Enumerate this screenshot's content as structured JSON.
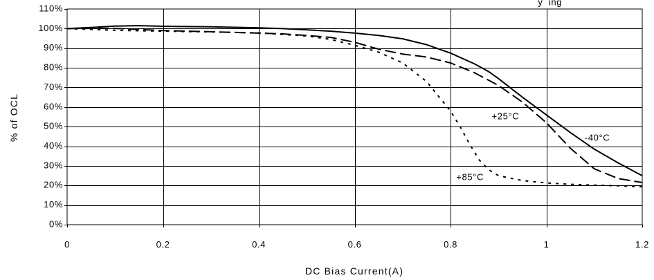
{
  "chart_data": {
    "type": "line",
    "title_fragment": "y  ing",
    "xlabel": "DC Bias Current(A)",
    "ylabel": "% of OCL",
    "xlim": [
      0,
      1.2
    ],
    "ylim": [
      0,
      110
    ],
    "x_ticks": [
      0,
      0.2,
      0.4,
      0.6,
      0.8,
      1,
      1.2
    ],
    "x_tick_labels": [
      "0",
      "0.2",
      "0.4",
      "0.6",
      "0.8",
      "1",
      "1.2"
    ],
    "y_ticks": [
      0,
      10,
      20,
      30,
      40,
      50,
      60,
      70,
      80,
      90,
      100,
      110
    ],
    "y_tick_labels": [
      "0%",
      "10%",
      "20%",
      "30%",
      "40%",
      "50%",
      "60%",
      "70%",
      "80%",
      "90%",
      "100%",
      "110%"
    ],
    "grid": true,
    "series": [
      {
        "name": "-40°C",
        "style": "solid",
        "label_at": [
          1.08,
          44
        ],
        "points": [
          [
            0,
            100
          ],
          [
            0.05,
            100.6
          ],
          [
            0.1,
            101.3
          ],
          [
            0.15,
            101.5
          ],
          [
            0.2,
            101.2
          ],
          [
            0.3,
            100.9
          ],
          [
            0.4,
            100.4
          ],
          [
            0.45,
            100
          ],
          [
            0.5,
            99.4
          ],
          [
            0.55,
            98.7
          ],
          [
            0.6,
            97.7
          ],
          [
            0.65,
            96.5
          ],
          [
            0.7,
            94.8
          ],
          [
            0.75,
            91.8
          ],
          [
            0.8,
            87.5
          ],
          [
            0.85,
            82
          ],
          [
            0.88,
            78
          ],
          [
            0.9,
            74.5
          ],
          [
            0.95,
            65
          ],
          [
            1.0,
            56
          ],
          [
            1.05,
            47
          ],
          [
            1.1,
            38.5
          ],
          [
            1.15,
            31.5
          ],
          [
            1.2,
            25
          ]
        ]
      },
      {
        "name": "+25°C",
        "style": "dashed",
        "label_at": [
          0.886,
          55
        ],
        "points": [
          [
            0,
            100
          ],
          [
            0.05,
            100.1
          ],
          [
            0.1,
            100.1
          ],
          [
            0.2,
            99
          ],
          [
            0.3,
            98.4
          ],
          [
            0.4,
            97.7
          ],
          [
            0.45,
            97.3
          ],
          [
            0.5,
            96.5
          ],
          [
            0.55,
            95.5
          ],
          [
            0.6,
            93
          ],
          [
            0.65,
            89.5
          ],
          [
            0.7,
            87
          ],
          [
            0.75,
            85.5
          ],
          [
            0.8,
            82.5
          ],
          [
            0.85,
            77.5
          ],
          [
            0.9,
            71
          ],
          [
            0.95,
            62.5
          ],
          [
            1.0,
            52
          ],
          [
            1.05,
            39
          ],
          [
            1.1,
            28.5
          ],
          [
            1.15,
            23.5
          ],
          [
            1.2,
            21.5
          ]
        ]
      },
      {
        "name": "+85°C",
        "style": "dotted",
        "label_at": [
          0.812,
          24
        ],
        "points": [
          [
            0,
            100
          ],
          [
            0.05,
            99.6
          ],
          [
            0.1,
            99.1
          ],
          [
            0.2,
            98.7
          ],
          [
            0.3,
            98.3
          ],
          [
            0.4,
            97.8
          ],
          [
            0.5,
            96.2
          ],
          [
            0.55,
            94.5
          ],
          [
            0.6,
            91.5
          ],
          [
            0.65,
            88
          ],
          [
            0.7,
            82.5
          ],
          [
            0.75,
            73
          ],
          [
            0.78,
            64
          ],
          [
            0.8,
            58
          ],
          [
            0.82,
            50
          ],
          [
            0.84,
            41
          ],
          [
            0.86,
            33
          ],
          [
            0.88,
            28
          ],
          [
            0.9,
            25
          ],
          [
            0.95,
            22.5
          ],
          [
            1.0,
            21.3
          ],
          [
            1.05,
            20.6
          ],
          [
            1.1,
            20.2
          ],
          [
            1.15,
            19.8
          ],
          [
            1.2,
            19.3
          ]
        ]
      }
    ]
  }
}
